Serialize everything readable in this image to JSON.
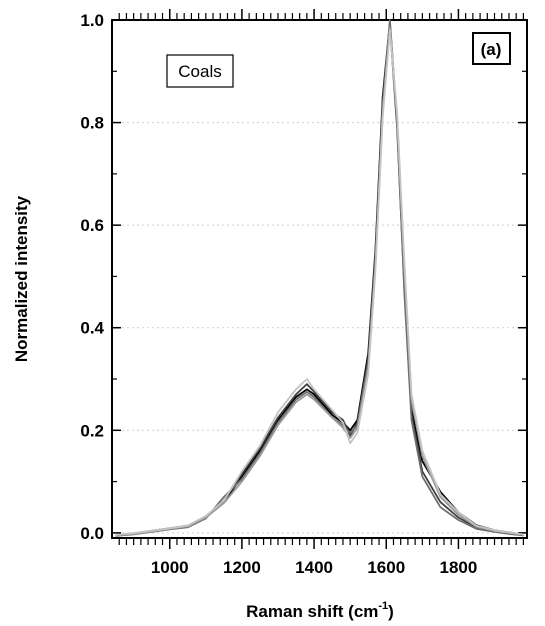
{
  "chart_data": {
    "type": "line",
    "xlabel": "Raman shift (cm",
    "xlabel_sup": "-1",
    "xlabel_close": ")",
    "ylabel": "Normalized intensity",
    "xlim": [
      840,
      1990
    ],
    "ylim": [
      -0.01,
      1.0
    ],
    "x_ticks": [
      {
        "value": 1000,
        "label": "1000"
      },
      {
        "value": 1200,
        "label": "1200"
      },
      {
        "value": 1400,
        "label": "1400"
      },
      {
        "value": 1600,
        "label": "1600"
      },
      {
        "value": 1800,
        "label": "1800"
      }
    ],
    "y_ticks": [
      {
        "value": 0.0,
        "label": "0.0"
      },
      {
        "value": 0.2,
        "label": "0.2"
      },
      {
        "value": 0.4,
        "label": "0.4"
      },
      {
        "value": 0.6,
        "label": "0.6"
      },
      {
        "value": 0.8,
        "label": "0.8"
      },
      {
        "value": 1.0,
        "label": "1.0"
      }
    ],
    "grid": "horizontal dotted",
    "annotations": {
      "legend_box": "Coals",
      "panel_label": "(a)"
    },
    "x": [
      850,
      900,
      950,
      1000,
      1050,
      1100,
      1150,
      1200,
      1250,
      1300,
      1350,
      1380,
      1400,
      1450,
      1480,
      1500,
      1520,
      1550,
      1570,
      1590,
      1610,
      1630,
      1650,
      1670,
      1700,
      1750,
      1800,
      1850,
      1900,
      1950,
      1980
    ],
    "series": [
      {
        "color": "#000000",
        "values": [
          -0.005,
          -0.002,
          0.003,
          0.008,
          0.012,
          0.03,
          0.06,
          0.11,
          0.16,
          0.22,
          0.265,
          0.28,
          0.27,
          0.23,
          0.215,
          0.2,
          0.22,
          0.35,
          0.55,
          0.85,
          0.995,
          0.8,
          0.5,
          0.24,
          0.14,
          0.08,
          0.04,
          0.015,
          0.005,
          0.0,
          -0.005
        ]
      },
      {
        "color": "#404040",
        "values": [
          -0.004,
          -0.001,
          0.004,
          0.009,
          0.014,
          0.032,
          0.062,
          0.115,
          0.165,
          0.225,
          0.27,
          0.29,
          0.275,
          0.235,
          0.22,
          0.19,
          0.215,
          0.34,
          0.54,
          0.84,
          0.99,
          0.79,
          0.48,
          0.23,
          0.12,
          0.06,
          0.03,
          0.01,
          0.003,
          -0.002,
          -0.004
        ]
      },
      {
        "color": "#6e6e6e",
        "values": [
          -0.006,
          -0.003,
          0.002,
          0.007,
          0.011,
          0.028,
          0.07,
          0.105,
          0.155,
          0.215,
          0.26,
          0.275,
          0.265,
          0.225,
          0.21,
          0.195,
          0.21,
          0.33,
          0.53,
          0.83,
          1.0,
          0.8,
          0.47,
          0.22,
          0.11,
          0.05,
          0.025,
          0.008,
          0.002,
          -0.003,
          -0.005
        ]
      },
      {
        "color": "#9a9a9a",
        "values": [
          -0.005,
          -0.002,
          0.003,
          0.008,
          0.013,
          0.03,
          0.058,
          0.1,
          0.15,
          0.21,
          0.255,
          0.27,
          0.26,
          0.225,
          0.205,
          0.185,
          0.205,
          0.32,
          0.52,
          0.82,
          0.985,
          0.81,
          0.52,
          0.26,
          0.15,
          0.07,
          0.035,
          0.012,
          0.004,
          -0.001,
          -0.004
        ]
      },
      {
        "color": "#c4c4c4",
        "values": [
          -0.004,
          -0.001,
          0.004,
          0.009,
          0.014,
          0.033,
          0.063,
          0.12,
          0.17,
          0.235,
          0.28,
          0.3,
          0.28,
          0.24,
          0.215,
          0.175,
          0.195,
          0.31,
          0.51,
          0.81,
          0.98,
          0.82,
          0.53,
          0.27,
          0.16,
          0.075,
          0.04,
          0.014,
          0.005,
          0.0,
          -0.003
        ]
      }
    ]
  }
}
